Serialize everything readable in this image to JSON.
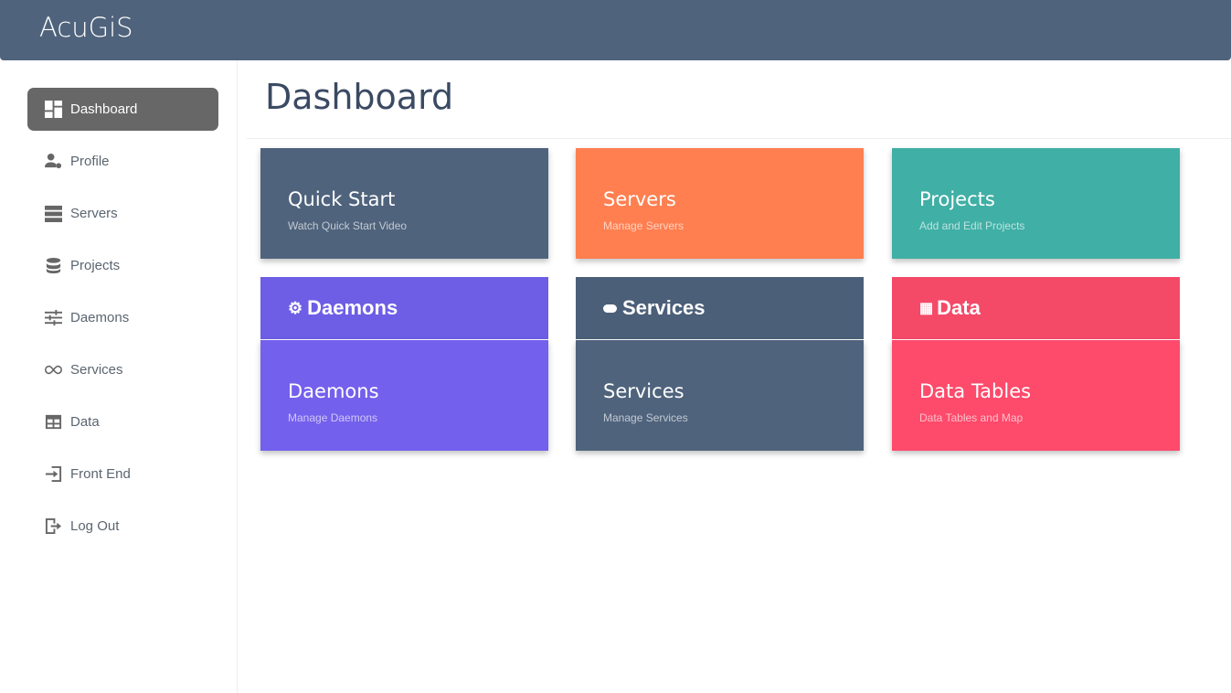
{
  "brand": "AcuGiS",
  "page_title": "Dashboard",
  "sidebar": {
    "items": [
      {
        "label": "Dashboard",
        "icon": "dashboard-icon",
        "active": true
      },
      {
        "label": "Profile",
        "icon": "user-gear-icon"
      },
      {
        "label": "Servers",
        "icon": "server-icon"
      },
      {
        "label": "Projects",
        "icon": "database-icon"
      },
      {
        "label": "Daemons",
        "icon": "sliders-icon"
      },
      {
        "label": "Services",
        "icon": "infinity-icon"
      },
      {
        "label": "Data",
        "icon": "table-icon"
      },
      {
        "label": "Front End",
        "icon": "sign-in-icon"
      },
      {
        "label": "Log Out",
        "icon": "sign-out-icon"
      }
    ]
  },
  "cards": [
    {
      "title": "Quick Start",
      "subtitle": "Watch Quick Start Video",
      "color": "#4f637c"
    },
    {
      "title": "Servers",
      "subtitle": "Manage Servers",
      "color": "#ff7f50"
    },
    {
      "title": "Projects",
      "subtitle": "Add and Edit Projects",
      "color": "#40afa5"
    },
    {
      "title": "Daemons",
      "subtitle": "Manage Daemons",
      "color": "#7360ec",
      "header": "Daemons",
      "header_color": "#6d5ee5"
    },
    {
      "title": "Services",
      "subtitle": "Manage Services",
      "color": "#4f637c",
      "header": "Services",
      "header_color": "#4b5f78"
    },
    {
      "title": "Data Tables",
      "subtitle": "Data Tables and Map",
      "color": "#fe4a6b",
      "header": "Data",
      "header_color": "#f54968"
    }
  ]
}
